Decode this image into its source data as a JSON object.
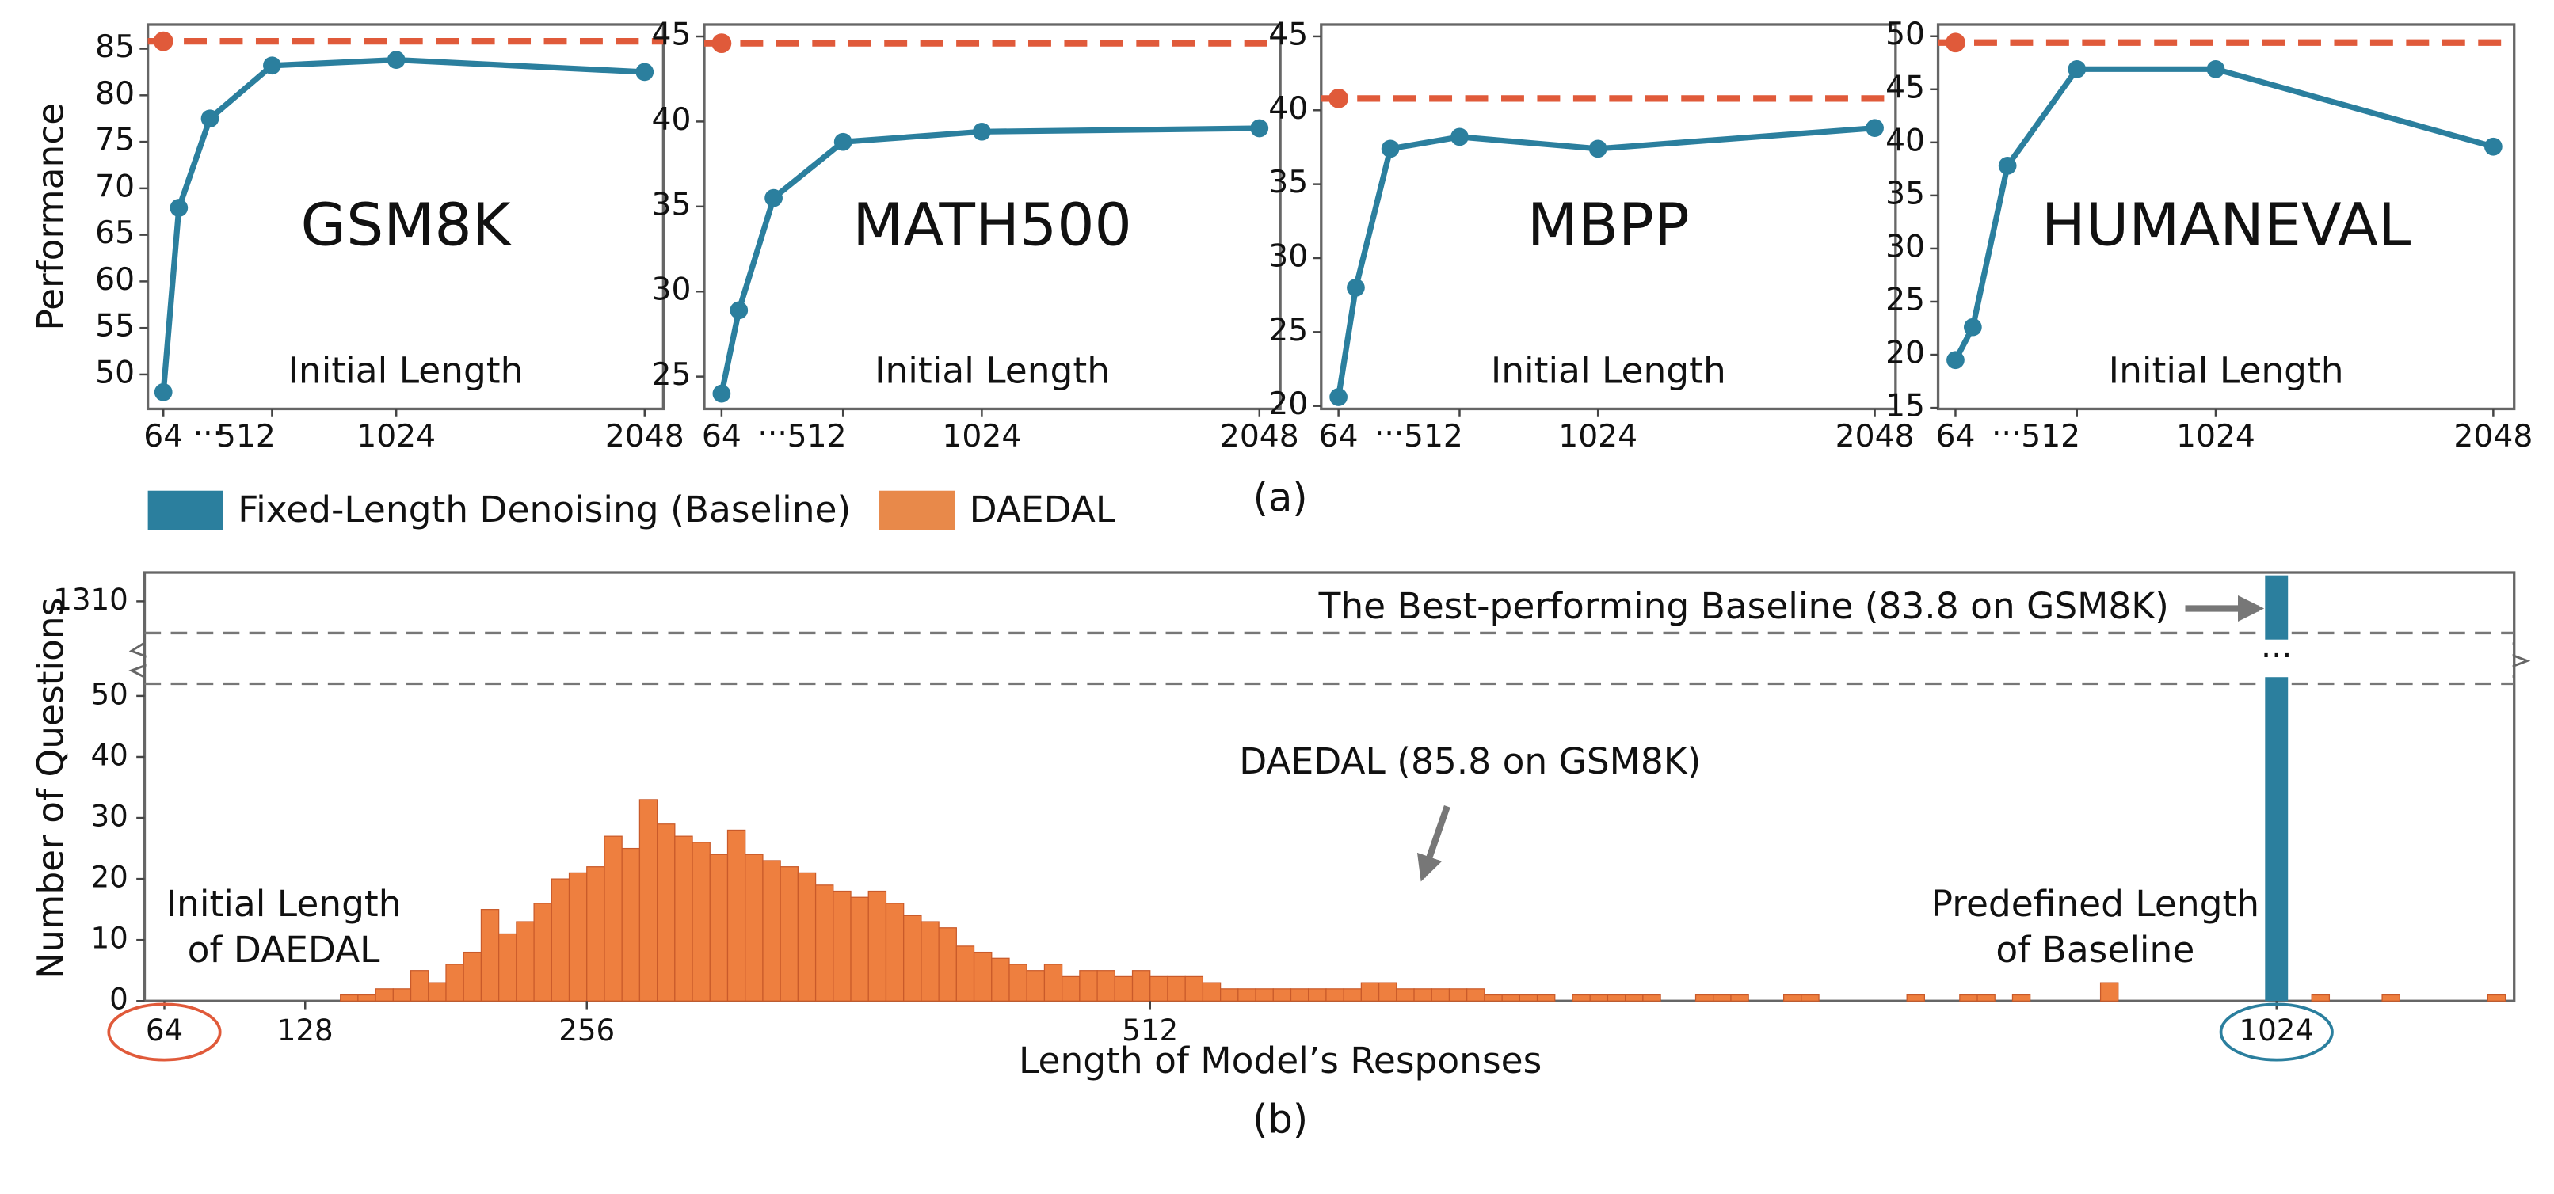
{
  "figure_labels": {
    "a": "(a)",
    "b": "(b)"
  },
  "legend": [
    {
      "name": "Fixed-Length Denoising (Baseline)",
      "color": "#2b7f9e"
    },
    {
      "name": "DAEDAL",
      "color": "#e8894a"
    }
  ],
  "chart_data": [
    {
      "type": "line",
      "title": "GSM8K",
      "ylabel": "Performance",
      "xlabel": "Initial Length",
      "x_ellipsis": "···",
      "x": [
        64,
        128,
        256,
        512,
        1024,
        2048
      ],
      "xlim": [
        0,
        2125
      ],
      "xticks": [
        64,
        512,
        1024,
        2048
      ],
      "ylim": [
        46.3,
        87.6
      ],
      "yticks": [
        50,
        55,
        60,
        65,
        70,
        75,
        80,
        85
      ],
      "series": [
        {
          "color": "#2b7f9e",
          "values": [
            48.1,
            67.9,
            77.5,
            83.2,
            83.8,
            82.5
          ]
        }
      ],
      "reference": {
        "value": 85.8,
        "x": 64,
        "color": "#e05a3a",
        "style": "dashed"
      }
    },
    {
      "type": "line",
      "title": "MATH500",
      "xlabel": "Initial Length",
      "x_ellipsis": "···",
      "x": [
        64,
        128,
        256,
        512,
        1024,
        2048
      ],
      "xlim": [
        0,
        2125
      ],
      "xticks": [
        64,
        512,
        1024,
        2048
      ],
      "ylim": [
        23.1,
        45.7
      ],
      "yticks": [
        25,
        30,
        35,
        40,
        45
      ],
      "series": [
        {
          "color": "#2b7f9e",
          "values": [
            24.0,
            28.9,
            35.5,
            38.8,
            39.4,
            39.6
          ]
        }
      ],
      "reference": {
        "value": 44.6,
        "x": 64,
        "color": "#e05a3a",
        "style": "dashed"
      }
    },
    {
      "type": "line",
      "title": "MBPP",
      "xlabel": "Initial Length",
      "x_ellipsis": "···",
      "x": [
        64,
        128,
        256,
        512,
        1024,
        2048
      ],
      "xlim": [
        0,
        2125
      ],
      "xticks": [
        64,
        512,
        1024,
        2048
      ],
      "ylim": [
        19.8,
        45.8
      ],
      "yticks": [
        20,
        25,
        30,
        35,
        40,
        45
      ],
      "series": [
        {
          "color": "#2b7f9e",
          "values": [
            20.6,
            28.0,
            37.4,
            38.2,
            37.4,
            38.8
          ]
        }
      ],
      "reference": {
        "value": 40.8,
        "x": 64,
        "color": "#e05a3a",
        "style": "dashed"
      }
    },
    {
      "type": "line",
      "title": "HUMANEVAL",
      "xlabel": "Initial Length",
      "x_ellipsis": "···",
      "x": [
        64,
        128,
        256,
        512,
        1024,
        2048
      ],
      "xlim": [
        0,
        2125
      ],
      "xticks": [
        64,
        512,
        1024,
        2048
      ],
      "ylim": [
        14.9,
        51.1
      ],
      "yticks": [
        15,
        20,
        25,
        30,
        35,
        40,
        45,
        50
      ],
      "series": [
        {
          "color": "#2b7f9e",
          "values": [
            19.5,
            22.6,
            37.8,
            46.9,
            46.9,
            39.6
          ]
        }
      ],
      "reference": {
        "value": 49.4,
        "x": 64,
        "color": "#e05a3a",
        "style": "dashed"
      }
    },
    {
      "type": "histogram",
      "xlabel": "Length of Model’s Responses",
      "ylabel": "Number of Questions",
      "color": "#ee7f3f",
      "edge_color": "#c95a2a",
      "bins": [
        64,
        72,
        80,
        88,
        96,
        104,
        112,
        120,
        128,
        136,
        144,
        152,
        160,
        168,
        176,
        184,
        192,
        200,
        208,
        216,
        224,
        232,
        240,
        248,
        256,
        264,
        272,
        280,
        288,
        296,
        304,
        312,
        320,
        328,
        336,
        344,
        352,
        360,
        368,
        376,
        384,
        392,
        400,
        408,
        416,
        424,
        432,
        440,
        448,
        456,
        464,
        472,
        480,
        488,
        496,
        504,
        512,
        520,
        528,
        536,
        544,
        552,
        560,
        568,
        576,
        584,
        592,
        600,
        608,
        616,
        624,
        632,
        640,
        648,
        656,
        664,
        672,
        680,
        688,
        696,
        704,
        712,
        720,
        728,
        736,
        744,
        752,
        760,
        768,
        776,
        784,
        792,
        800,
        808,
        816,
        824,
        832,
        840,
        848,
        856,
        864,
        872,
        880,
        888,
        896,
        904,
        912,
        920,
        928,
        936,
        944,
        952,
        960,
        968,
        976,
        984,
        992,
        1000,
        1008,
        1016,
        1024,
        1032,
        1040,
        1048,
        1056,
        1064,
        1072,
        1080,
        1088,
        1096,
        1104,
        1112,
        1120,
        1128
      ],
      "counts": [
        0,
        0,
        0,
        0,
        0,
        0,
        0,
        0,
        0,
        0,
        1,
        1,
        2,
        2,
        5,
        3,
        6,
        8,
        15,
        11,
        13,
        16,
        20,
        21,
        22,
        27,
        25,
        33,
        29,
        27,
        26,
        24,
        28,
        24,
        23,
        22,
        21,
        19,
        18,
        17,
        18,
        16,
        14,
        13,
        12,
        9,
        8,
        7,
        6,
        5,
        6,
        4,
        5,
        5,
        4,
        5,
        4,
        4,
        4,
        3,
        2,
        2,
        2,
        2,
        2,
        2,
        2,
        2,
        3,
        3,
        2,
        2,
        2,
        2,
        2,
        1,
        1,
        1,
        1,
        0,
        1,
        1,
        1,
        1,
        1,
        0,
        0,
        1,
        1,
        1,
        0,
        0,
        1,
        1,
        0,
        0,
        0,
        0,
        0,
        1,
        0,
        0,
        1,
        1,
        0,
        1,
        0,
        0,
        0,
        0,
        3,
        0,
        0,
        0,
        0,
        0,
        0,
        0,
        0,
        0,
        0,
        0,
        1,
        0,
        0,
        0,
        1,
        0,
        0,
        0,
        0,
        0,
        1
      ],
      "xlim": [
        55,
        1132
      ],
      "xticks": [
        64,
        128,
        256,
        512,
        1024
      ],
      "xtick_circle_colors": [
        "#e05a3a",
        null,
        null,
        null,
        "#2b7f9e"
      ],
      "ylim": [
        0,
        52
      ],
      "yticks": [
        0,
        10,
        20,
        30,
        40,
        50
      ],
      "ylim_break": [
        1299,
        1320
      ],
      "yticks_break": [
        1310
      ],
      "baseline": {
        "x": 1024,
        "value": 1319,
        "color": "#2b7f9e"
      },
      "ellipsis": "···",
      "annotations": [
        {
          "lines": [
            "The Best-performing Baseline (83.8 on GSM8K)"
          ],
          "color": "#2b7f9e"
        },
        {
          "lines": [
            "DAEDAL (85.8 on GSM8K)"
          ],
          "color": "#e2522e"
        },
        {
          "lines": [
            "Initial Length",
            "of DAEDAL"
          ],
          "color": "#e2522e"
        },
        {
          "lines": [
            "Predefined Length",
            "of Baseline"
          ],
          "color": "#2b7f9e"
        }
      ]
    }
  ]
}
